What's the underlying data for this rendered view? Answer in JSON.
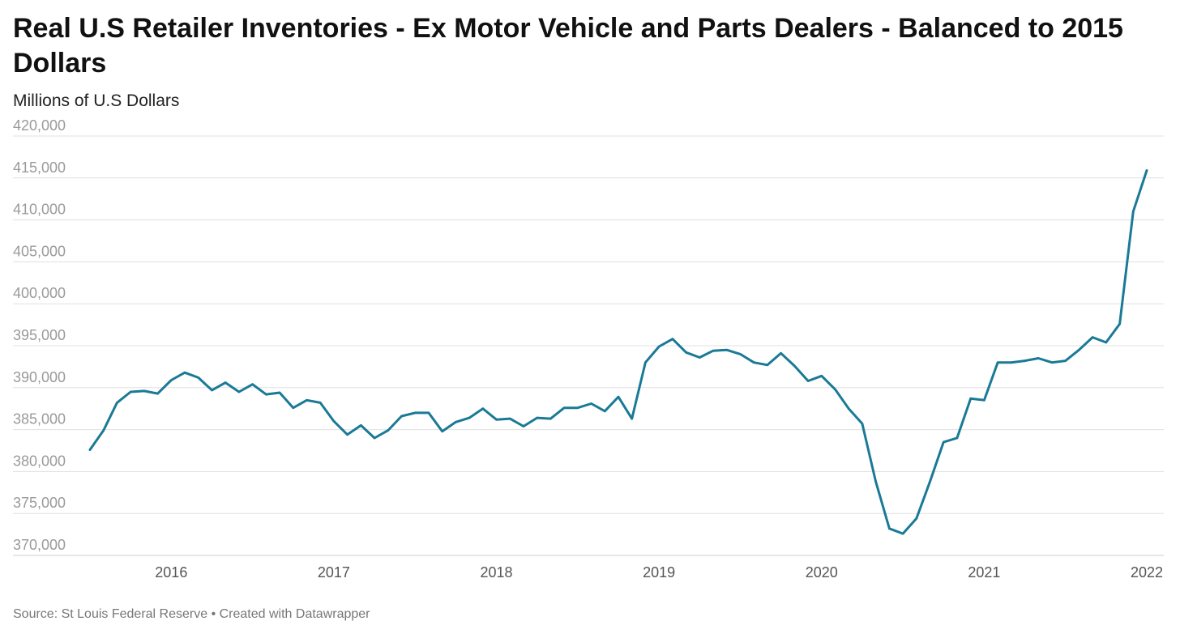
{
  "title": "Real U.S Retailer Inventories - Ex Motor Vehicle and Parts Dealers - Balanced to 2015 Dollars",
  "subtitle": "Millions of U.S Dollars",
  "footer": {
    "source": "Source: St Louis Federal Reserve",
    "separator": " • ",
    "credit": "Created with Datawrapper"
  },
  "colors": {
    "line": "#1a7a96",
    "grid": "#e0e0e0",
    "axis": "#cccccc"
  },
  "chart_data": {
    "type": "line",
    "title": "Real U.S Retailer Inventories - Ex Motor Vehicle and Parts Dealers - Balanced to 2015 Dollars",
    "ylabel": "Millions of U.S Dollars",
    "xlabel": "",
    "ylim": [
      370000,
      420000
    ],
    "xlim": [
      "2015-07",
      "2022-01"
    ],
    "grid": true,
    "yticks": [
      370000,
      375000,
      380000,
      385000,
      390000,
      395000,
      400000,
      405000,
      410000,
      415000,
      420000
    ],
    "ytick_labels": [
      "370,000",
      "375,000",
      "380,000",
      "385,000",
      "390,000",
      "395,000",
      "400,000",
      "405,000",
      "410,000",
      "415,000",
      "420,000"
    ],
    "xticks": [
      "2016-01",
      "2017-01",
      "2018-01",
      "2019-01",
      "2020-01",
      "2021-01",
      "2022-01"
    ],
    "xtick_labels": [
      "2016",
      "2017",
      "2018",
      "2019",
      "2020",
      "2021",
      "2022"
    ],
    "x": [
      "2015-07",
      "2015-08",
      "2015-09",
      "2015-10",
      "2015-11",
      "2015-12",
      "2016-01",
      "2016-02",
      "2016-03",
      "2016-04",
      "2016-05",
      "2016-06",
      "2016-07",
      "2016-08",
      "2016-09",
      "2016-10",
      "2016-11",
      "2016-12",
      "2017-01",
      "2017-02",
      "2017-03",
      "2017-04",
      "2017-05",
      "2017-06",
      "2017-07",
      "2017-08",
      "2017-09",
      "2017-10",
      "2017-11",
      "2017-12",
      "2018-01",
      "2018-02",
      "2018-03",
      "2018-04",
      "2018-05",
      "2018-06",
      "2018-07",
      "2018-08",
      "2018-09",
      "2018-10",
      "2018-11",
      "2018-12",
      "2019-01",
      "2019-02",
      "2019-03",
      "2019-04",
      "2019-05",
      "2019-06",
      "2019-07",
      "2019-08",
      "2019-09",
      "2019-10",
      "2019-11",
      "2019-12",
      "2020-01",
      "2020-02",
      "2020-03",
      "2020-04",
      "2020-05",
      "2020-06",
      "2020-07",
      "2020-08",
      "2020-09",
      "2020-10",
      "2020-11",
      "2020-12",
      "2021-01",
      "2021-02",
      "2021-03",
      "2021-04",
      "2021-05",
      "2021-06",
      "2021-07",
      "2021-08",
      "2021-09",
      "2021-10",
      "2021-11",
      "2021-12",
      "2022-01"
    ],
    "series": [
      {
        "values": [
          382600,
          384900,
          388200,
          389500,
          389600,
          389300,
          390900,
          391800,
          391200,
          389700,
          390600,
          389500,
          390400,
          389200,
          389400,
          387600,
          388500,
          388200,
          386000,
          384400,
          385500,
          384000,
          384900,
          386600,
          387000,
          387000,
          384800,
          385900,
          386400,
          387500,
          386200,
          386300,
          385400,
          386400,
          386300,
          387600,
          387600,
          388100,
          387200,
          388900,
          386300,
          393000,
          394900,
          395800,
          394200,
          393600,
          394400,
          394500,
          394000,
          393000,
          392700,
          394100,
          392600,
          390800,
          391400,
          389800,
          387500,
          385700,
          378800,
          373200,
          372600,
          374400,
          378800,
          383500,
          384000,
          388700,
          388500,
          393000,
          393000,
          393200,
          393500,
          393000,
          393200,
          394500,
          396000,
          395400,
          397600,
          411000,
          415900
        ]
      }
    ]
  }
}
